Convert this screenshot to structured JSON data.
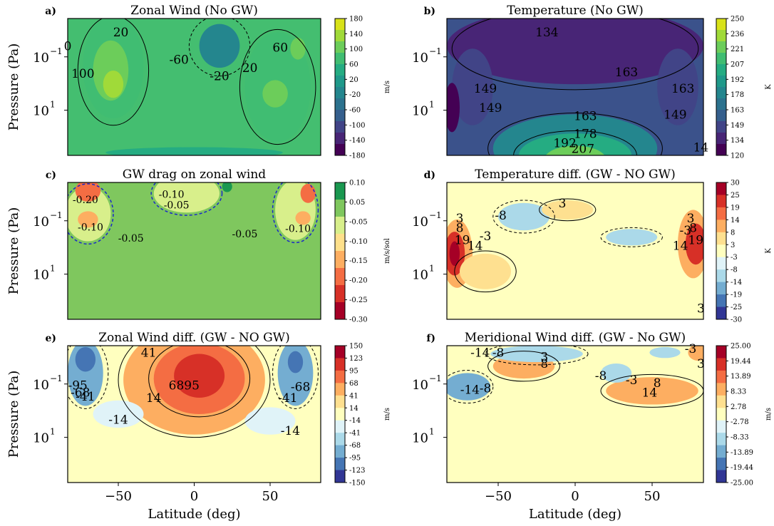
{
  "chart_data": [
    {
      "type": "heatmap",
      "letter": "a)",
      "title": "Zonal Wind (No GW)",
      "ylabel": "Pressure (Pa)",
      "xlabel": "",
      "y_ticks": [
        "10",
        "10"
      ],
      "y_tick_exps": [
        "−1",
        "1"
      ],
      "x_ticks": [],
      "colorbar": {
        "unit": "m/s",
        "ticks": [
          "180",
          "140",
          "100",
          "60",
          "20",
          "-20",
          "-60",
          "-100",
          "-140",
          "-180"
        ],
        "colors": [
          "#d8e219",
          "#a0da39",
          "#6ccd5a",
          "#40bd72",
          "#25ac82",
          "#1f998a",
          "#24868e",
          "#2c728e",
          "#355f8d",
          "#414487",
          "#482576",
          "#440154"
        ]
      },
      "background": "#44be70",
      "contour_labels": [
        "0",
        "20",
        "100",
        "-60",
        "-20",
        "20",
        "60"
      ]
    },
    {
      "type": "heatmap",
      "letter": "b)",
      "title": "Temperature (No GW)",
      "ylabel": "",
      "xlabel": "",
      "y_ticks": [
        "10",
        "10"
      ],
      "y_tick_exps": [
        "−1",
        "1"
      ],
      "x_ticks": [],
      "colorbar": {
        "unit": "K",
        "ticks": [
          "250",
          "236",
          "221",
          "207",
          "192",
          "178",
          "163",
          "149",
          "134",
          "120"
        ],
        "colors": [
          "#d8e219",
          "#a0da39",
          "#6ccd5a",
          "#40bd72",
          "#25ac82",
          "#1f998a",
          "#24868e",
          "#2c728e",
          "#355f8d",
          "#414487",
          "#482576",
          "#440154"
        ]
      },
      "background": "#3b528b",
      "contour_labels": [
        "134",
        "149",
        "163",
        "163",
        "149",
        "163",
        "149",
        "178",
        "192",
        "207",
        "14"
      ]
    },
    {
      "type": "heatmap",
      "letter": "c)",
      "title": "GW drag on zonal wind",
      "ylabel": "Pressure (Pa)",
      "xlabel": "",
      "y_ticks": [
        "10",
        "10"
      ],
      "y_tick_exps": [
        "−1",
        "1"
      ],
      "x_ticks": [],
      "colorbar": {
        "unit": "m/s/sol",
        "ticks": [
          "0.10",
          "0.05",
          "-0.05",
          "-0.10",
          "-0.15",
          "-0.20",
          "-0.25",
          "-0.30"
        ],
        "colors": [
          "#1a9850",
          "#7fc75e",
          "#d8ef8b",
          "#fee08b",
          "#fdae61",
          "#f46d43",
          "#d73027",
          "#a50026"
        ]
      },
      "background": "#7fc75e",
      "contour_labels": [
        "-0.20",
        "-0.10",
        "-0.05",
        "-0.10",
        "-0.05",
        "-0.05",
        "-0.10"
      ]
    },
    {
      "type": "heatmap",
      "letter": "d)",
      "title": "Temperature diff. (GW - NO GW)",
      "ylabel": "",
      "xlabel": "",
      "y_ticks": [
        "10",
        "10"
      ],
      "y_tick_exps": [
        "−1",
        "1"
      ],
      "x_ticks": [],
      "colorbar": {
        "unit": "K",
        "ticks": [
          "30",
          "25",
          "19",
          "14",
          "8",
          "3",
          "-3",
          "-8",
          "-14",
          "-19",
          "-25",
          "-30"
        ],
        "colors": [
          "#a50026",
          "#d73027",
          "#f46d43",
          "#fdae61",
          "#fee090",
          "#ffffbf",
          "#e0f3f8",
          "#abd9e9",
          "#74add1",
          "#4575b4",
          "#313695"
        ]
      },
      "background": "#ffffbf",
      "contour_labels": [
        "3",
        "-8",
        "3",
        "8",
        "19",
        "14",
        "-3",
        "-3",
        "3",
        "8",
        "19",
        "14",
        "3"
      ]
    },
    {
      "type": "heatmap",
      "letter": "e)",
      "title": "Zonal Wind diff. (GW - NO GW)",
      "ylabel": "Pressure (Pa)",
      "xlabel": "Latitude (deg)",
      "y_ticks": [
        "10",
        "10"
      ],
      "y_tick_exps": [
        "−1",
        "1"
      ],
      "x_ticks": [
        "−50",
        "0",
        "50"
      ],
      "colorbar": {
        "unit": "m/s",
        "ticks": [
          "150",
          "123",
          "95",
          "68",
          "41",
          "14",
          "-14",
          "-41",
          "-68",
          "-95",
          "-123",
          "-150"
        ],
        "colors": [
          "#a50026",
          "#d73027",
          "#f46d43",
          "#fdae61",
          "#fee090",
          "#ffffbf",
          "#e0f3f8",
          "#abd9e9",
          "#74add1",
          "#4575b4",
          "#313695"
        ]
      },
      "background": "#ffffbf",
      "contour_labels": [
        "41",
        "-95",
        "-68",
        "-41",
        "14",
        "6895",
        "-14",
        "-68",
        "-41",
        "-14"
      ]
    },
    {
      "type": "heatmap",
      "letter": "f)",
      "title": "Meridional Wind diff. (GW - No GW)",
      "ylabel": "",
      "xlabel": "Latitude (deg)",
      "y_ticks": [
        "10",
        "10"
      ],
      "y_tick_exps": [
        "−1",
        "1"
      ],
      "x_ticks": [
        "−50",
        "0",
        "50"
      ],
      "colorbar": {
        "unit": "m/s",
        "ticks": [
          "25.00",
          "19.44",
          "13.89",
          "8.33",
          "2.78",
          "-2.78",
          "-8.33",
          "-13.89",
          "-19.44",
          "-25.00"
        ],
        "colors": [
          "#a50026",
          "#d73027",
          "#f46d43",
          "#fdae61",
          "#fee090",
          "#ffffbf",
          "#e0f3f8",
          "#abd9e9",
          "#74add1",
          "#4575b4",
          "#313695"
        ]
      },
      "background": "#ffffbf",
      "contour_labels": [
        "-14",
        "-8",
        "3",
        "8",
        "-3",
        "3",
        "-14",
        "-8",
        "-8",
        "-3",
        "8",
        "14"
      ]
    }
  ]
}
